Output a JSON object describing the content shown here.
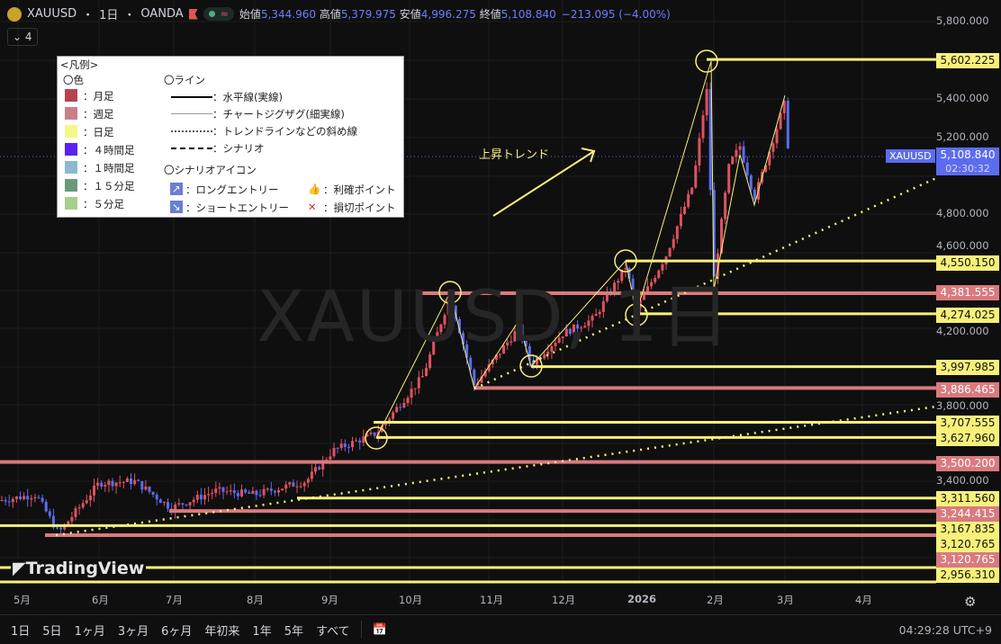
{
  "header": {
    "symbol": "XAUUSD",
    "separator": "・",
    "interval": "1日",
    "broker": "OANDA",
    "open_label": "始値",
    "open": "5,344.960",
    "high_label": "高値",
    "high": "5,379.975",
    "low_label": "安値",
    "low": "4,996.275",
    "close_label": "終値",
    "close": "5,108.840",
    "change": "−213.095 (−4.00%)",
    "indicator_count": "4"
  },
  "watermark": "XAUUSD, 1日",
  "annotation": "上昇トレンド",
  "legend": {
    "title": "<凡例>",
    "colors_title": "〇色",
    "colors": [
      {
        "label": "：月足",
        "color": "#b5444f"
      },
      {
        "label": "：週足",
        "color": "#c97f86"
      },
      {
        "label": "：日足",
        "color": "#f7f787"
      },
      {
        "label": "：４時間足",
        "color": "#5b22f0"
      },
      {
        "label": "：１時間足",
        "color": "#8cb8d2"
      },
      {
        "label": "：１５分足",
        "color": "#6a9a7a"
      },
      {
        "label": "：５分足",
        "color": "#a6cf8a"
      }
    ],
    "lines_title": "〇ライン",
    "lines": [
      {
        "style": "solid-thick",
        "label": "：水平線(実線)"
      },
      {
        "style": "solid-thin",
        "label": "：チャートジグザグ(細実線)"
      },
      {
        "style": "dotted",
        "label": "：トレンドラインなどの斜め線"
      },
      {
        "style": "dashed",
        "label": "：シナリオ"
      }
    ],
    "icons_title": "〇シナリオアイコン",
    "icons": [
      {
        "icon": "long-entry-arrow-icon",
        "label": "：ロングエントリー"
      },
      {
        "icon": "short-entry-arrow-icon",
        "label": "：ショートエントリー"
      },
      {
        "icon": "thumbs-up-icon",
        "label": "：利確ポイント"
      },
      {
        "icon": "red-x-icon",
        "label": "：損切ポイント"
      }
    ]
  },
  "price_axis": [
    "5,800.000",
    "5,400.000",
    "5,200.000",
    "4,800.000",
    "4,600.000",
    "4,200.000",
    "3,800.000",
    "3,400.000"
  ],
  "price_axis_values": [
    5800,
    5400,
    5200,
    4800,
    4600,
    4200,
    3800,
    3400
  ],
  "price_labels": [
    {
      "text": "5,602.225",
      "kind": "y",
      "value": 5602.225
    },
    {
      "text": "4,550.150",
      "kind": "y",
      "value": 4550.15
    },
    {
      "text": "4,381.555",
      "kind": "p",
      "value": 4381.555
    },
    {
      "text": "4,274.025",
      "kind": "y",
      "value": 4274.025
    },
    {
      "text": "3,997.985",
      "kind": "y",
      "value": 3997.985
    },
    {
      "text": "3,886.465",
      "kind": "p",
      "value": 3886.465
    },
    {
      "text": "3,707.555",
      "kind": "y",
      "value": 3707.555
    },
    {
      "text": "3,627.960",
      "kind": "y",
      "value": 3627.96
    },
    {
      "text": "3,500.200",
      "kind": "p",
      "value": 3500.2
    },
    {
      "text": "3,311.560",
      "kind": "y",
      "value": 3311.56
    },
    {
      "text": "3,244.415",
      "kind": "p",
      "value": 3244.415
    },
    {
      "text": "3,167.835",
      "kind": "y",
      "value": 3167.835
    },
    {
      "text": "3,120.765",
      "kind": "y",
      "value": 3120.765
    },
    {
      "text": "3,120.765",
      "kind": "p",
      "value": 3120.765
    },
    {
      "text": "2,956.310",
      "kind": "y",
      "value": 2956.31
    }
  ],
  "current": {
    "symbol": "XAUUSD",
    "price": "5,108.840",
    "countdown": "02:30:32"
  },
  "time_axis": [
    "5月",
    "6月",
    "7月",
    "8月",
    "9月",
    "10月",
    "11月",
    "12月",
    "2026",
    "2月",
    "3月",
    "4月"
  ],
  "ranges": [
    "1日",
    "5日",
    "1ヶ月",
    "3ヶ月",
    "6ヶ月",
    "年初来",
    "1年",
    "5年",
    "すべて"
  ],
  "clock": "04:29:28 UTC+9",
  "brand": "TradingView",
  "colors": {
    "up": "#e0525e",
    "down": "#5b6cf0",
    "yellow": "#f7f07a",
    "pink": "#d97a7e",
    "current": "#5b6cf0"
  }
}
